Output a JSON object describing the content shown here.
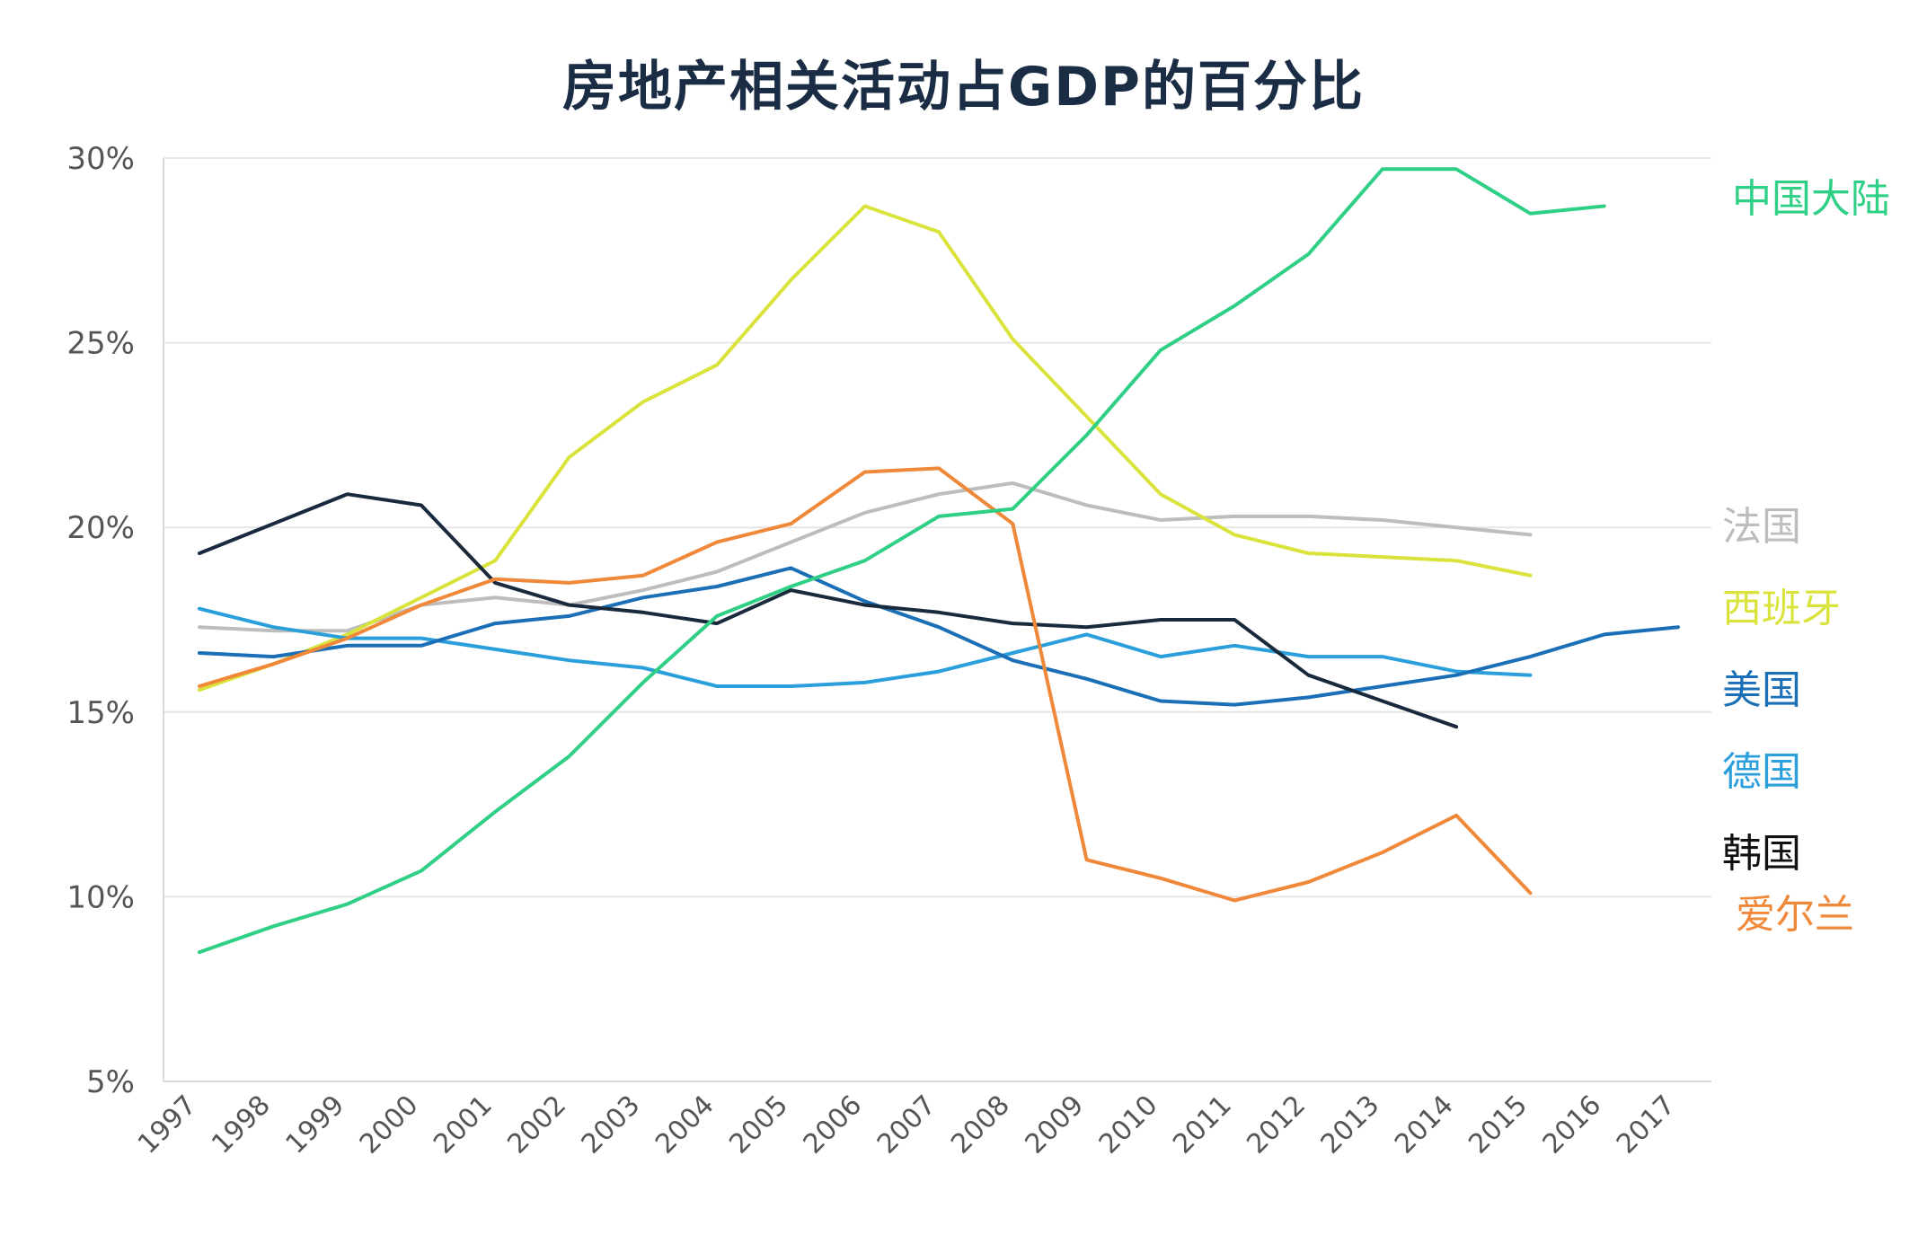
{
  "chart_data": {
    "type": "line",
    "title": "房地产相关活动占GDP的百分比",
    "xlabel": "",
    "ylabel": "",
    "x": [
      "1997",
      "1998",
      "1999",
      "2000",
      "2001",
      "2002",
      "2003",
      "2004",
      "2005",
      "2006",
      "2007",
      "2008",
      "2009",
      "2010",
      "2011",
      "2012",
      "2013",
      "2014",
      "2015",
      "2016",
      "2017"
    ],
    "yticks": [
      5,
      10,
      15,
      20,
      25,
      30
    ],
    "ytick_labels": [
      "5%",
      "10%",
      "15%",
      "20%",
      "25%",
      "30%"
    ],
    "ylim": [
      5,
      30
    ],
    "grid": true,
    "legend_placement": "right, labels beside lines",
    "series": [
      {
        "name": "中国大陆",
        "color": "#2fd085",
        "values": [
          8.5,
          9.2,
          9.8,
          10.7,
          12.3,
          13.8,
          15.8,
          17.6,
          18.4,
          19.1,
          20.3,
          20.5,
          22.5,
          24.8,
          26.0,
          27.4,
          29.7,
          29.7,
          28.5,
          28.7,
          null
        ]
      },
      {
        "name": "法国",
        "color": "#bdbdbd",
        "values": [
          17.3,
          17.2,
          17.2,
          17.9,
          18.1,
          17.9,
          18.3,
          18.8,
          19.6,
          20.4,
          20.9,
          21.2,
          20.6,
          20.2,
          20.3,
          20.3,
          20.2,
          20.0,
          19.8,
          null,
          null
        ]
      },
      {
        "name": "西班牙",
        "color": "#d9e33c",
        "values": [
          15.6,
          16.3,
          17.1,
          18.1,
          19.1,
          21.9,
          23.4,
          24.4,
          26.7,
          28.7,
          28.0,
          25.1,
          23.0,
          20.9,
          19.8,
          19.3,
          19.2,
          19.1,
          18.7,
          null,
          null
        ]
      },
      {
        "name": "美国",
        "color": "#1a6fb7",
        "values": [
          16.6,
          16.5,
          16.8,
          16.8,
          17.4,
          17.6,
          18.1,
          18.4,
          18.9,
          18.0,
          17.3,
          16.4,
          15.9,
          15.3,
          15.2,
          15.4,
          15.7,
          16.0,
          16.5,
          17.1,
          17.3
        ]
      },
      {
        "name": "德国",
        "color": "#2b9fdb",
        "values": [
          17.8,
          17.3,
          17.0,
          17.0,
          16.7,
          16.4,
          16.2,
          15.7,
          15.7,
          15.8,
          16.1,
          16.6,
          17.1,
          16.5,
          16.8,
          16.5,
          16.5,
          16.1,
          16.0,
          null,
          null
        ]
      },
      {
        "name": "韩国",
        "color": "#1a2a3d",
        "values": [
          19.3,
          20.1,
          20.9,
          20.6,
          18.5,
          17.9,
          17.7,
          17.4,
          18.3,
          17.9,
          17.7,
          17.4,
          17.3,
          17.5,
          17.5,
          16.0,
          15.3,
          14.6,
          null,
          null,
          null
        ]
      },
      {
        "name": "爱尔兰",
        "color": "#f0883a",
        "values": [
          15.7,
          16.3,
          17.0,
          17.9,
          18.6,
          18.5,
          18.7,
          19.6,
          20.1,
          21.5,
          21.6,
          20.1,
          11.0,
          10.5,
          9.9,
          10.4,
          11.2,
          12.2,
          10.1,
          null,
          null
        ]
      }
    ]
  }
}
